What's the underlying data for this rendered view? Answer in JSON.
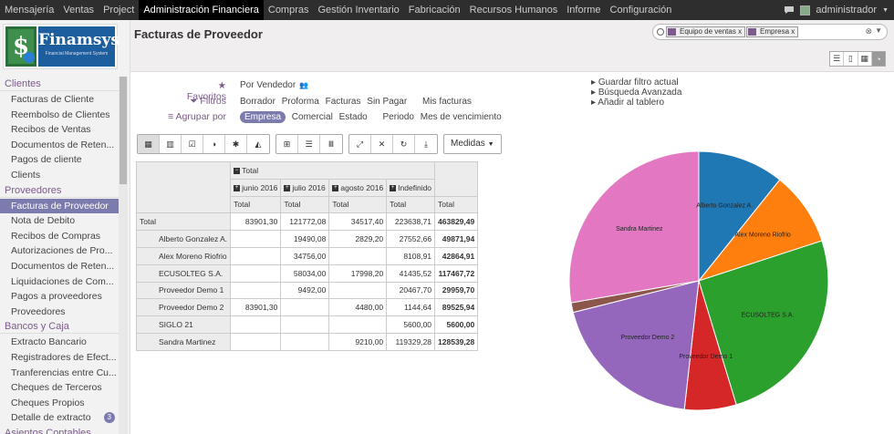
{
  "topnav": {
    "items": [
      "Mensajería",
      "Ventas",
      "Project",
      "Administración Financiera",
      "Compras",
      "Gestión Inventario",
      "Fabricación",
      "Recursos Humanos",
      "Informe",
      "Configuración"
    ],
    "active_index": 3,
    "user": "administrador"
  },
  "logo": {
    "name": "Finamsys",
    "tagline": "Financial Management System"
  },
  "sidebar": {
    "sections": [
      {
        "title": "Clientes",
        "items": [
          "Facturas de Cliente",
          "Reembolso de Clientes",
          "Recibos de Ventas",
          "Documentos de Reten...",
          "Pagos de cliente",
          "Clients"
        ]
      },
      {
        "title": "Proveedores",
        "items": [
          "Facturas de Proveedor",
          "Nota de Debito",
          "Recibos de Compras",
          "Autorizaciones de Pro...",
          "Documentos de Reten...",
          "Liquidaciones de Com...",
          "Pagos a proveedores",
          "Proveedores"
        ]
      },
      {
        "title": "Bancos y Caja",
        "items": [
          "Extracto Bancario",
          "Registradores de Efect...",
          "Tranferencias entre Cu...",
          "Cheques de Terceros",
          "Cheques Propios",
          "Detalle de extracto"
        ]
      },
      {
        "title": "Asientos Contables",
        "items": []
      }
    ],
    "active_item": "Facturas de Proveedor",
    "badge": {
      "item": "Detalle de extracto",
      "count": "3"
    }
  },
  "header": {
    "title": "Facturas de Proveedor",
    "facets": [
      "Equipo de ventas",
      "Empresa"
    ]
  },
  "filters": {
    "favoritos_label": "Favoritos",
    "favoritos_opts": [
      "Por Vendedor"
    ],
    "filtros_label": "Filtros",
    "filtros_opts": [
      "Borrador",
      "Proforma",
      "Facturas",
      "Sin Pagar",
      "Mis facturas"
    ],
    "agrupar_label": "Agrupar por",
    "agrupar_opts": [
      "Empresa",
      "Comercial",
      "Estado",
      "Periodo",
      "Mes de vencimiento"
    ],
    "save_actions": [
      "Guardar filtro actual",
      "Búsqueda Avanzada",
      "Añadir al tablero"
    ]
  },
  "toolbar": {
    "medidas_label": "Medidas"
  },
  "pivot": {
    "top_header": "Total",
    "columns": [
      "junio 2016",
      "julio 2016",
      "agosto 2016",
      "Indefinido"
    ],
    "measure": "Total",
    "grand_total_label": "Total",
    "total_row": {
      "label": "Total",
      "values": [
        "83901,30",
        "121772,08",
        "34517,40",
        "223638,71"
      ],
      "total": "463829,49"
    },
    "rows": [
      {
        "label": "Alberto Gonzalez A.",
        "values": [
          "",
          "19490,08",
          "2829,20",
          "27552,66"
        ],
        "total": "49871,94"
      },
      {
        "label": "Alex Moreno Riofrio",
        "values": [
          "",
          "34756,00",
          "",
          "8108,91"
        ],
        "total": "42864,91"
      },
      {
        "label": "ECUSOLTEG S.A.",
        "values": [
          "",
          "58034,00",
          "17998,20",
          "41435,52"
        ],
        "total": "117467,72"
      },
      {
        "label": "Proveedor Demo 1",
        "values": [
          "",
          "9492,00",
          "",
          "20467,70"
        ],
        "total": "29959,70"
      },
      {
        "label": "Proveedor Demo 2",
        "values": [
          "83901,30",
          "",
          "4480,00",
          "1144,64"
        ],
        "total": "89525,94"
      },
      {
        "label": "SIGLO 21",
        "values": [
          "",
          "",
          "",
          "5600,00"
        ],
        "total": "5600,00"
      },
      {
        "label": "Sandra Martinez",
        "values": [
          "",
          "",
          "9210,00",
          "119329,28"
        ],
        "total": "128539,28"
      }
    ]
  },
  "chart_data": {
    "type": "pie",
    "categories": [
      "Alberto Gonzalez A.",
      "Alex Moreno Riofrio",
      "ECUSOLTEG S.A.",
      "Proveedor Demo 1",
      "Proveedor Demo 2",
      "SIGLO 21",
      "Sandra Martinez"
    ],
    "values": [
      49871.94,
      42864.91,
      117467.72,
      29959.7,
      89525.94,
      5600.0,
      128539.28
    ],
    "colors": [
      "#1f77b4",
      "#ff7f0e",
      "#2ca02c",
      "#d62728",
      "#9467bd",
      "#8c564b",
      "#e377c2"
    ],
    "legend": "none"
  }
}
